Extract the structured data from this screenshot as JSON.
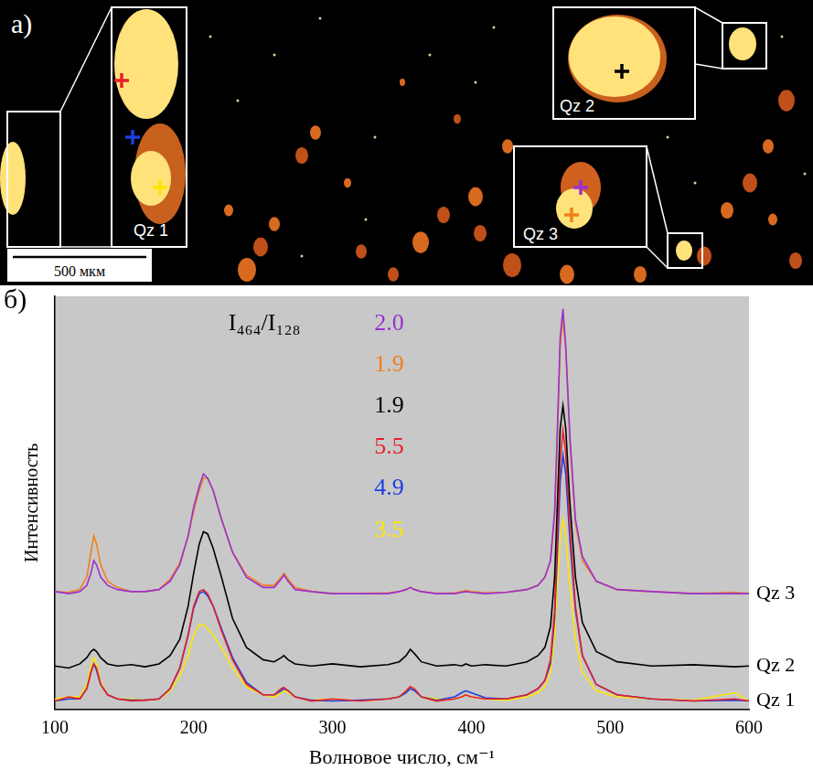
{
  "image_panel": {
    "panel_label": "а)",
    "insets": [
      "Qz 1",
      "Qz 2",
      "Qz 3"
    ],
    "scale_bar": "500 мкм"
  },
  "chart_data": {
    "type": "line",
    "panel_label": "б)",
    "x_label": "Волновое число, см⁻¹",
    "y_label": "Интенсивность",
    "annotation": "I₄₆₄/I₁₂₈",
    "xlim": [
      100,
      600
    ],
    "xticks": [
      100,
      200,
      300,
      400,
      500,
      600
    ],
    "ylim": [
      0,
      100
    ],
    "tick_labels": "x",
    "grid": false,
    "x": [
      100,
      110,
      118,
      123,
      126,
      128,
      130,
      133,
      138,
      145,
      155,
      165,
      175,
      183,
      190,
      196,
      200,
      204,
      207,
      210,
      214,
      220,
      228,
      238,
      250,
      258,
      263,
      265,
      268,
      273,
      285,
      300,
      320,
      340,
      348,
      353,
      356,
      359,
      364,
      375,
      388,
      393,
      396,
      400,
      410,
      425,
      440,
      448,
      453,
      457,
      460,
      462,
      464,
      466,
      468,
      471,
      475,
      480,
      490,
      505,
      530,
      560,
      590,
      600
    ],
    "series": [
      {
        "group": "Qz 3",
        "color": "#9b30d0",
        "ratio": 2.0,
        "values": [
          28.5,
          28,
          28.5,
          30,
          33,
          36,
          35,
          32,
          30,
          29,
          28.5,
          28.5,
          29,
          31,
          35,
          42,
          49,
          54,
          57,
          56,
          53,
          46,
          38,
          32,
          29.5,
          29.5,
          31.5,
          32.5,
          31,
          29,
          28.5,
          28,
          28,
          28,
          28.5,
          29,
          29.5,
          29,
          28.5,
          28,
          28,
          28.3,
          28.5,
          28.3,
          28,
          28.3,
          29,
          30,
          32,
          36,
          48,
          68,
          90,
          97,
          88,
          66,
          46,
          37,
          31,
          29,
          28.5,
          28,
          28,
          28
        ]
      },
      {
        "group": "Qz 3",
        "color": "#f07f1a",
        "ratio": 1.9,
        "values": [
          28.5,
          28.3,
          29,
          32,
          38,
          42,
          40,
          35,
          31,
          29.5,
          28.5,
          28.5,
          29,
          31.5,
          35.5,
          42,
          48,
          53,
          56,
          56,
          53,
          46,
          38,
          32.5,
          30,
          30,
          32,
          33,
          31.5,
          29.5,
          28.5,
          28,
          28,
          28.2,
          28.5,
          29,
          29.5,
          29,
          28.5,
          28,
          28.2,
          28.5,
          28.8,
          28.5,
          28.2,
          28.3,
          29,
          30,
          32,
          36,
          47,
          66,
          88,
          95,
          87,
          65,
          45,
          36,
          31,
          29,
          28.5,
          28,
          28.3,
          28
        ]
      },
      {
        "group": "Qz 2",
        "color": "#000000",
        "ratio": 1.9,
        "values": [
          10.5,
          10,
          11,
          12.5,
          14,
          14.5,
          14,
          12.5,
          11,
          10.5,
          10.8,
          10.3,
          11,
          13,
          17,
          25,
          33,
          40,
          43,
          42.5,
          39,
          32,
          22,
          15,
          12,
          11.5,
          12.5,
          13,
          12,
          11,
          10.5,
          11,
          10.3,
          10.8,
          11.5,
          13,
          14.5,
          13.5,
          11.5,
          10.5,
          10.8,
          10.5,
          11,
          10.5,
          10.8,
          10.5,
          11.5,
          13,
          15,
          20,
          32,
          50,
          68,
          73.5,
          68,
          50,
          32,
          21,
          14,
          11.5,
          10.5,
          10.8,
          10.3,
          10.5
        ]
      },
      {
        "group": "Qz 1",
        "color": "#e8202a",
        "ratio": 5.5,
        "values": [
          2,
          3,
          2.5,
          5,
          9,
          11,
          10,
          6,
          3.5,
          2.5,
          2,
          2.2,
          2.5,
          5,
          10,
          18,
          25,
          28.5,
          29,
          28,
          25,
          19,
          12,
          6,
          3.5,
          3.5,
          5,
          5.3,
          4.5,
          3,
          2,
          2.5,
          2,
          2.5,
          3,
          4.5,
          5.5,
          5,
          3,
          2,
          2.5,
          3,
          3.5,
          3,
          2.5,
          2.5,
          3.5,
          5,
          7,
          12,
          24,
          42,
          60,
          67.5,
          62,
          44,
          25,
          13,
          6,
          3.5,
          2.5,
          2,
          2.5,
          2
        ]
      },
      {
        "group": "Qz 1",
        "color": "#1c3ee0",
        "ratio": 4.9,
        "values": [
          2,
          2.5,
          2.5,
          5,
          9,
          11,
          9.5,
          6,
          3.5,
          2.5,
          2.2,
          2.2,
          2.5,
          5,
          10,
          18,
          24.5,
          28,
          28.5,
          27.5,
          25,
          19.5,
          12.5,
          6.5,
          3.5,
          3.5,
          4.5,
          5,
          4.5,
          3,
          2.2,
          2,
          2.2,
          2.5,
          3,
          4,
          5,
          4.5,
          3,
          2.2,
          3,
          4,
          4.5,
          4,
          2.8,
          2.5,
          3.5,
          5,
          7,
          11,
          22,
          38,
          55,
          61.5,
          57,
          41,
          24,
          13,
          6,
          3.5,
          2.5,
          2,
          2.2,
          2
        ]
      },
      {
        "group": "Qz 1",
        "color": "#ffe600",
        "ratio": 3.5,
        "values": [
          2.5,
          3,
          3,
          6,
          10.5,
          12.5,
          11,
          6.5,
          3.5,
          2.5,
          2.5,
          2.2,
          2.5,
          4.5,
          8,
          13,
          18,
          20.5,
          20.5,
          19.5,
          18,
          15,
          10,
          5.5,
          3.5,
          3,
          4,
          4.5,
          4,
          3,
          2.2,
          2.5,
          2,
          2.5,
          3,
          4,
          5,
          4.5,
          3,
          2.5,
          2.5,
          3,
          3.5,
          3,
          2.5,
          2.2,
          3,
          4,
          5.5,
          9,
          18,
          30,
          41,
          46,
          42,
          30,
          17,
          9,
          4.5,
          3,
          2.5,
          2.2,
          4,
          2
        ]
      }
    ]
  }
}
